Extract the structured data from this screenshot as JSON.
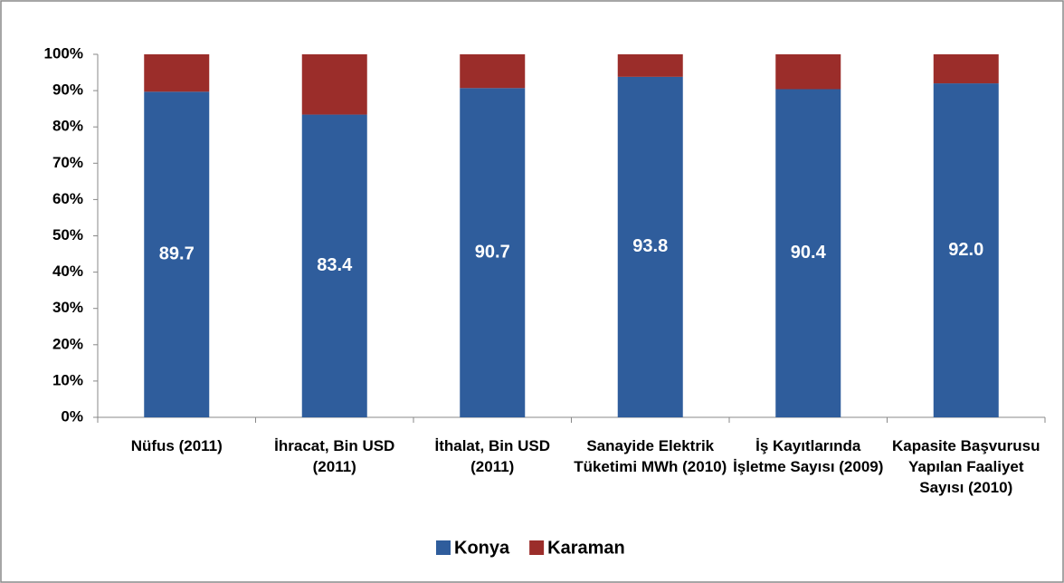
{
  "chart_data": {
    "type": "stacked_bar",
    "categories": [
      "Nüfus (2011)",
      "İhracat, Bin USD (2011)",
      "İthalat, Bin USD (2011)",
      "Sanayide Elektrik Tüketimi MWh (2010)",
      "İş Kayıtlarında İşletme Sayısı (2009)",
      "Kapasite Başvurusu Yapılan Faaliyet Sayısı (2010)"
    ],
    "series": [
      {
        "name": "Konya",
        "color": "#2f5d9c",
        "values": [
          89.7,
          83.4,
          90.7,
          93.8,
          90.4,
          92.0
        ],
        "value_labels": [
          "89.7",
          "83.4",
          "90.7",
          "93.8",
          "90.4",
          "92.0"
        ]
      },
      {
        "name": "Karaman",
        "color": "#9b2d2a",
        "values": [
          10.3,
          16.6,
          9.3,
          6.2,
          9.6,
          8.0
        ]
      }
    ],
    "ylim": [
      0,
      100
    ],
    "yticks": [
      {
        "value": 0,
        "label": "0%"
      },
      {
        "value": 10,
        "label": "10%"
      },
      {
        "value": 20,
        "label": "20%"
      },
      {
        "value": 30,
        "label": "30%"
      },
      {
        "value": 40,
        "label": "40%"
      },
      {
        "value": 50,
        "label": "50%"
      },
      {
        "value": 60,
        "label": "60%"
      },
      {
        "value": 70,
        "label": "70%"
      },
      {
        "value": 80,
        "label": "80%"
      },
      {
        "value": 90,
        "label": "90%"
      },
      {
        "value": 100,
        "label": "100%"
      }
    ],
    "legend": "bottom"
  }
}
